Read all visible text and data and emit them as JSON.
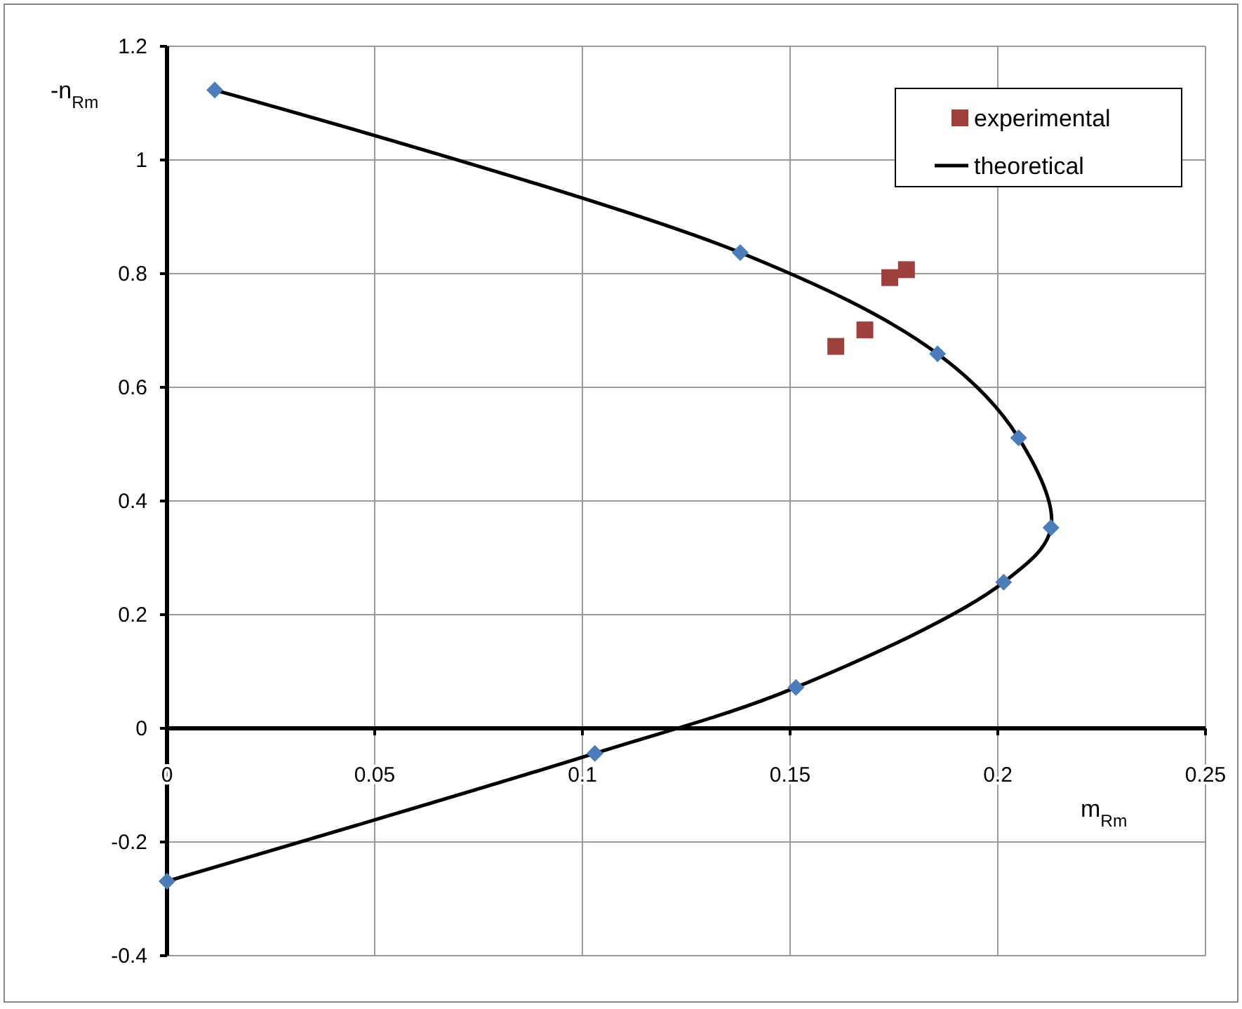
{
  "chart_data": {
    "type": "scatter",
    "xlabel": "m$_{Rm}$",
    "ylabel": "-n$_{Rm}$",
    "xlim": [
      0,
      0.25
    ],
    "xticks": [
      0,
      0.05,
      0.1,
      0.15,
      0.2,
      0.25
    ],
    "ylim": [
      -0.4,
      1.2
    ],
    "yticks": [
      -0.4,
      -0.2,
      0,
      0.2,
      0.4,
      0.6,
      0.8,
      1,
      1.2
    ],
    "grid": true,
    "legend": "top right",
    "series": [
      {
        "name": "experimental",
        "type": "scatter",
        "marker": "square",
        "color": "#a0403c",
        "x": [
          0.161,
          0.168,
          0.174,
          0.178
        ],
        "values": [
          0.672,
          0.701,
          0.793,
          0.807
        ]
      },
      {
        "name": "theoretical",
        "type": "line",
        "marker": "none",
        "color": "#000000",
        "x": [
          0.0115,
          0.138,
          0.1855,
          0.205,
          0.2128,
          0.2014,
          0.1514,
          0.103,
          0
        ],
        "values": [
          1.123,
          0.837,
          0.659,
          0.511,
          0.353,
          0.257,
          0.072,
          -0.044,
          -0.269
        ]
      },
      {
        "type": "scatter",
        "marker": "diamond",
        "color": "#4a7ebb",
        "x": [
          0.0115,
          0.138,
          0.1855,
          0.205,
          0.2128,
          0.2014,
          0.1514,
          0.103,
          0
        ],
        "values": [
          1.123,
          0.837,
          0.659,
          0.511,
          0.353,
          0.257,
          0.072,
          -0.044,
          -0.269
        ]
      }
    ]
  }
}
